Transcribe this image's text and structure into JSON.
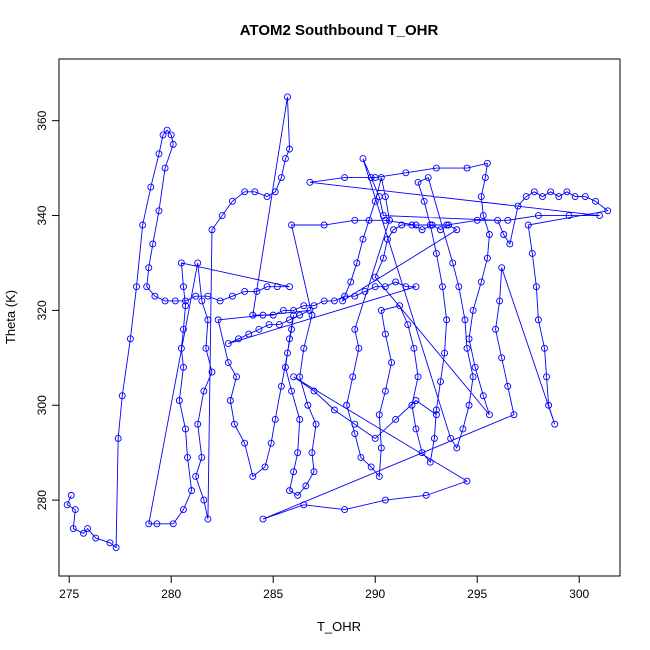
{
  "chart_data": {
    "type": "scatter",
    "title": "ATOM2 Southbound T_OHR",
    "xlabel": "T_OHR",
    "ylabel": "Theta (K)",
    "xlim": [
      274.5,
      302.0
    ],
    "ylim": [
      264.0,
      373.0
    ],
    "xticks": [
      275,
      280,
      285,
      290,
      295,
      300
    ],
    "yticks": [
      280,
      300,
      320,
      340,
      360
    ],
    "grid": false,
    "color": "#0000ff",
    "series": [
      {
        "points": [
          [
            275.1,
            281
          ],
          [
            274.9,
            279
          ],
          [
            275.3,
            278
          ],
          [
            275.2,
            274
          ],
          [
            275.7,
            273
          ],
          [
            275.9,
            274
          ],
          [
            276.3,
            272
          ],
          [
            277.0,
            271
          ],
          [
            277.3,
            270
          ],
          [
            277.4,
            293
          ],
          [
            277.6,
            302
          ],
          [
            278.0,
            314
          ],
          [
            278.3,
            325
          ],
          [
            278.6,
            338
          ],
          [
            279.0,
            346
          ],
          [
            279.4,
            353
          ],
          [
            279.6,
            357
          ],
          [
            279.8,
            358
          ],
          [
            280.0,
            357
          ],
          [
            280.1,
            355
          ],
          [
            279.7,
            350
          ],
          [
            279.4,
            341
          ],
          [
            279.1,
            334
          ],
          [
            278.9,
            329
          ],
          [
            278.8,
            325
          ],
          [
            279.2,
            323
          ],
          [
            279.7,
            322
          ],
          [
            280.2,
            322
          ],
          [
            280.7,
            322
          ],
          [
            281.2,
            323
          ],
          [
            281.8,
            323
          ],
          [
            282.4,
            322
          ],
          [
            283.0,
            323
          ],
          [
            283.6,
            324
          ],
          [
            284.2,
            324
          ],
          [
            284.7,
            325
          ],
          [
            285.2,
            325
          ],
          [
            285.8,
            325
          ],
          [
            280.5,
            330
          ],
          [
            280.6,
            325
          ],
          [
            280.7,
            321
          ],
          [
            280.6,
            316
          ],
          [
            280.5,
            312
          ],
          [
            280.6,
            308
          ],
          [
            280.4,
            301
          ],
          [
            280.7,
            295
          ],
          [
            280.8,
            289
          ],
          [
            281.0,
            282
          ],
          [
            280.6,
            278
          ],
          [
            280.1,
            275
          ],
          [
            279.3,
            275
          ],
          [
            278.9,
            275
          ],
          [
            281.3,
            330
          ],
          [
            281.5,
            322
          ],
          [
            281.8,
            318
          ],
          [
            281.7,
            312
          ],
          [
            282.0,
            307
          ],
          [
            281.6,
            303
          ],
          [
            281.3,
            296
          ],
          [
            281.5,
            289
          ],
          [
            281.2,
            285
          ],
          [
            281.6,
            280
          ],
          [
            281.8,
            276
          ],
          [
            282.0,
            337
          ],
          [
            282.5,
            340
          ],
          [
            283.0,
            343
          ],
          [
            283.6,
            345
          ],
          [
            284.1,
            345
          ],
          [
            284.7,
            344
          ],
          [
            285.1,
            345
          ],
          [
            285.4,
            348
          ],
          [
            285.6,
            352
          ],
          [
            285.8,
            354
          ],
          [
            285.7,
            365
          ],
          [
            284.0,
            319
          ],
          [
            284.5,
            319
          ],
          [
            285.0,
            319
          ],
          [
            285.5,
            320
          ],
          [
            286.0,
            320
          ],
          [
            286.5,
            321
          ],
          [
            287.0,
            321
          ],
          [
            287.5,
            322
          ],
          [
            288.0,
            322
          ],
          [
            288.5,
            323
          ],
          [
            289.0,
            323
          ],
          [
            289.5,
            324
          ],
          [
            290.0,
            325
          ],
          [
            290.5,
            325
          ],
          [
            291.0,
            326
          ],
          [
            291.5,
            325
          ],
          [
            292.0,
            325
          ],
          [
            282.8,
            313
          ],
          [
            283.3,
            314
          ],
          [
            283.8,
            315
          ],
          [
            284.3,
            316
          ],
          [
            284.8,
            317
          ],
          [
            285.3,
            317
          ],
          [
            285.8,
            318
          ],
          [
            286.3,
            319
          ],
          [
            286.8,
            320
          ],
          [
            282.3,
            318
          ],
          [
            282.8,
            309
          ],
          [
            283.2,
            306
          ],
          [
            282.9,
            301
          ],
          [
            283.1,
            296
          ],
          [
            283.6,
            292
          ],
          [
            284.0,
            285
          ],
          [
            284.6,
            287
          ],
          [
            284.9,
            292
          ],
          [
            285.1,
            297
          ],
          [
            285.4,
            304
          ],
          [
            285.7,
            311
          ],
          [
            285.9,
            316
          ],
          [
            286.0,
            319
          ],
          [
            285.8,
            314
          ],
          [
            285.6,
            308
          ],
          [
            285.9,
            303
          ],
          [
            286.3,
            297
          ],
          [
            286.2,
            290
          ],
          [
            286.0,
            286
          ],
          [
            285.8,
            282
          ],
          [
            286.2,
            281
          ],
          [
            286.6,
            283
          ],
          [
            287.0,
            286
          ],
          [
            286.9,
            290
          ],
          [
            287.1,
            296
          ],
          [
            286.7,
            300
          ],
          [
            286.3,
            306
          ],
          [
            286.5,
            312
          ],
          [
            286.9,
            319
          ],
          [
            285.9,
            338
          ],
          [
            287.5,
            338
          ],
          [
            289.0,
            339
          ],
          [
            290.5,
            339
          ],
          [
            292.0,
            338
          ],
          [
            293.5,
            338
          ],
          [
            295.0,
            339
          ],
          [
            296.5,
            339
          ],
          [
            298.0,
            340
          ],
          [
            299.5,
            340
          ],
          [
            301.0,
            340
          ],
          [
            286.8,
            347
          ],
          [
            288.5,
            348
          ],
          [
            290.0,
            348
          ],
          [
            291.5,
            349
          ],
          [
            293.0,
            350
          ],
          [
            294.5,
            350
          ],
          [
            295.5,
            351
          ],
          [
            295.4,
            348
          ],
          [
            295.2,
            344
          ],
          [
            295.3,
            340
          ],
          [
            295.6,
            336
          ],
          [
            295.5,
            331
          ],
          [
            295.2,
            326
          ],
          [
            294.8,
            320
          ],
          [
            294.6,
            314
          ],
          [
            294.9,
            308
          ],
          [
            295.3,
            302
          ],
          [
            295.6,
            298
          ],
          [
            290.0,
            327
          ],
          [
            290.4,
            331
          ],
          [
            290.6,
            335
          ],
          [
            290.9,
            337
          ],
          [
            291.3,
            338
          ],
          [
            291.8,
            338
          ],
          [
            292.3,
            337
          ],
          [
            292.8,
            338
          ],
          [
            293.2,
            337
          ],
          [
            293.6,
            338
          ],
          [
            294.0,
            337
          ],
          [
            288.4,
            322
          ],
          [
            288.8,
            326
          ],
          [
            289.1,
            330
          ],
          [
            289.4,
            335
          ],
          [
            289.7,
            339
          ],
          [
            290.0,
            343
          ],
          [
            290.3,
            348
          ],
          [
            290.5,
            344
          ],
          [
            290.7,
            339
          ],
          [
            289.0,
            316
          ],
          [
            289.2,
            312
          ],
          [
            288.9,
            306
          ],
          [
            288.6,
            300
          ],
          [
            289.0,
            294
          ],
          [
            289.3,
            289
          ],
          [
            289.8,
            287
          ],
          [
            290.2,
            285
          ],
          [
            290.3,
            291
          ],
          [
            290.2,
            298
          ],
          [
            290.5,
            303
          ],
          [
            290.8,
            309
          ],
          [
            290.5,
            315
          ],
          [
            290.3,
            320
          ],
          [
            291.2,
            321
          ],
          [
            291.6,
            317
          ],
          [
            291.9,
            312
          ],
          [
            292.1,
            306
          ],
          [
            291.8,
            300
          ],
          [
            292.0,
            295
          ],
          [
            292.3,
            290
          ],
          [
            292.7,
            288
          ],
          [
            292.9,
            293
          ],
          [
            293.0,
            299
          ],
          [
            293.2,
            305
          ],
          [
            293.4,
            311
          ],
          [
            293.5,
            318
          ],
          [
            293.3,
            325
          ],
          [
            293.0,
            332
          ],
          [
            292.7,
            338
          ],
          [
            292.4,
            343
          ],
          [
            292.1,
            347
          ],
          [
            292.6,
            348
          ],
          [
            293.8,
            330
          ],
          [
            294.1,
            325
          ],
          [
            294.4,
            318
          ],
          [
            294.5,
            312
          ],
          [
            294.8,
            306
          ],
          [
            294.6,
            300
          ],
          [
            294.3,
            295
          ],
          [
            294.0,
            291
          ],
          [
            293.7,
            293
          ],
          [
            289.4,
            352
          ],
          [
            289.8,
            348
          ],
          [
            290.2,
            344
          ],
          [
            290.4,
            340
          ],
          [
            296.0,
            339
          ],
          [
            296.3,
            336
          ],
          [
            296.6,
            334
          ],
          [
            297.0,
            342
          ],
          [
            297.4,
            344
          ],
          [
            297.8,
            345
          ],
          [
            298.2,
            344
          ],
          [
            298.6,
            345
          ],
          [
            299.0,
            344
          ],
          [
            299.4,
            345
          ],
          [
            299.8,
            344
          ],
          [
            300.3,
            344
          ],
          [
            300.8,
            343
          ],
          [
            301.4,
            341
          ],
          [
            297.5,
            338
          ],
          [
            297.7,
            332
          ],
          [
            297.9,
            325
          ],
          [
            298.0,
            318
          ],
          [
            298.3,
            312
          ],
          [
            298.4,
            306
          ],
          [
            298.5,
            300
          ],
          [
            298.8,
            296
          ],
          [
            296.2,
            329
          ],
          [
            296.1,
            322
          ],
          [
            295.9,
            316
          ],
          [
            296.2,
            310
          ],
          [
            296.5,
            304
          ],
          [
            296.8,
            298
          ],
          [
            284.5,
            276
          ],
          [
            286.5,
            279
          ],
          [
            288.5,
            278
          ],
          [
            290.5,
            280
          ],
          [
            292.5,
            281
          ],
          [
            294.5,
            284
          ],
          [
            286.0,
            306
          ],
          [
            287.0,
            303
          ],
          [
            288.0,
            299
          ],
          [
            289.0,
            296
          ],
          [
            290.0,
            293
          ],
          [
            291.0,
            297
          ],
          [
            292.0,
            301
          ],
          [
            293.0,
            298
          ]
        ]
      }
    ]
  }
}
